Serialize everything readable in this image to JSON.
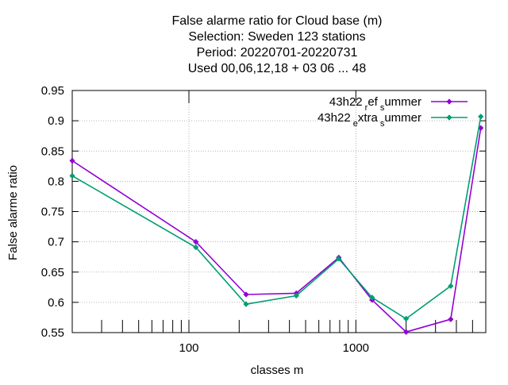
{
  "chart_data": {
    "type": "line",
    "title_lines": [
      "False alarme ratio  for Cloud base (m)",
      "Selection: Sweden     123 stations",
      "Period: 20220701-20220731",
      "Used  00,06,12,18  + 03 06 ... 48"
    ],
    "xlabel": "classes m",
    "ylabel": "False alarme ratio",
    "x_scale": "log",
    "xlim": [
      20,
      6000
    ],
    "ylim": [
      0.55,
      0.95
    ],
    "grid": true,
    "legend_position": "top-right",
    "x_ticks": [
      100,
      1000
    ],
    "x_tick_labels": [
      "100",
      "1000"
    ],
    "y_ticks": [
      0.55,
      0.6,
      0.65,
      0.7,
      0.75,
      0.8,
      0.85,
      0.9,
      0.95
    ],
    "y_tick_labels": [
      "0.55",
      "0.6",
      "0.65",
      "0.7",
      "0.75",
      "0.8",
      "0.85",
      "0.9",
      "0.95"
    ],
    "x": [
      20,
      110,
      220,
      440,
      790,
      1250,
      2000,
      3700,
      5600
    ],
    "series": [
      {
        "name_parts": [
          "43h22",
          "r",
          "ef",
          "s",
          "ummer"
        ],
        "color": "#9400d3",
        "values": [
          0.834,
          0.7,
          0.613,
          0.615,
          0.674,
          0.604,
          0.551,
          0.572,
          0.888
        ]
      },
      {
        "name_parts": [
          "43h22",
          "e",
          "xtra",
          "s",
          "ummer"
        ],
        "color": "#009e73",
        "values": [
          0.809,
          0.691,
          0.597,
          0.611,
          0.672,
          0.608,
          0.573,
          0.627,
          0.907
        ]
      }
    ]
  }
}
